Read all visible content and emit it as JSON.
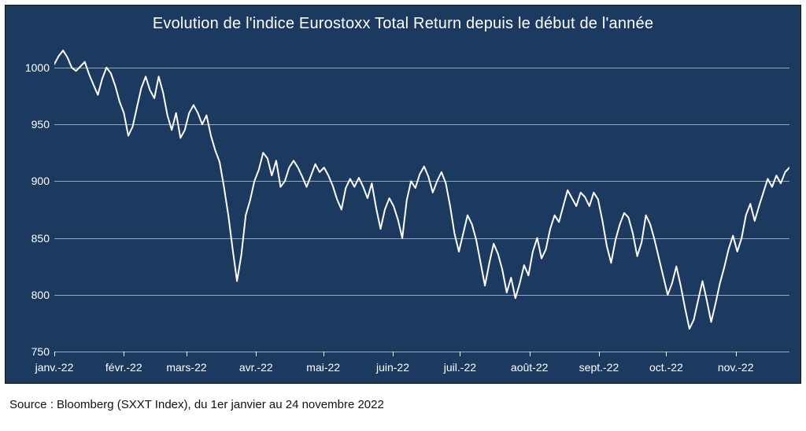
{
  "chart": {
    "type": "line",
    "title": "Evolution de l'indice Eurostoxx Total Return depuis le début de l'année",
    "title_fontsize": 20,
    "title_color": "#ffffff",
    "background_color": "#1c3a5f",
    "grid_color": "#ffffff",
    "grid_opacity": 0.55,
    "line_color": "#ffffff",
    "line_width": 2,
    "axis_label_color": "#ffffff",
    "axis_label_fontsize": 14,
    "ylim": [
      750,
      1020
    ],
    "yticks": [
      750,
      800,
      850,
      900,
      950,
      1000
    ],
    "xticks": [
      "janv.-22",
      "févr.-22",
      "mars-22",
      "avr.-22",
      "mai-22",
      "juin-22",
      "juil.-22",
      "août-22",
      "sept.-22",
      "oct.-22",
      "nov.-22"
    ],
    "x_range_days": 328,
    "values": [
      1003,
      1010,
      1015,
      1009,
      1000,
      997,
      1001,
      1005,
      994,
      985,
      976,
      990,
      1000,
      995,
      984,
      970,
      960,
      940,
      948,
      965,
      982,
      992,
      980,
      973,
      992,
      978,
      958,
      945,
      960,
      938,
      945,
      960,
      967,
      960,
      950,
      958,
      940,
      927,
      917,
      895,
      870,
      840,
      812,
      835,
      870,
      883,
      900,
      910,
      925,
      920,
      905,
      918,
      895,
      900,
      912,
      918,
      912,
      904,
      895,
      905,
      915,
      908,
      912,
      905,
      896,
      884,
      875,
      894,
      902,
      895,
      903,
      895,
      885,
      898,
      876,
      858,
      875,
      885,
      878,
      866,
      850,
      883,
      900,
      894,
      906,
      913,
      904,
      890,
      900,
      908,
      898,
      878,
      854,
      838,
      854,
      870,
      862,
      848,
      828,
      808,
      828,
      845,
      836,
      822,
      802,
      815,
      797,
      810,
      826,
      817,
      838,
      850,
      832,
      840,
      858,
      870,
      864,
      878,
      892,
      885,
      878,
      890,
      886,
      878,
      890,
      884,
      865,
      843,
      828,
      848,
      862,
      872,
      868,
      854,
      834,
      846,
      870,
      862,
      848,
      832,
      816,
      800,
      810,
      825,
      808,
      788,
      770,
      778,
      795,
      812,
      795,
      776,
      792,
      810,
      824,
      840,
      852,
      838,
      850,
      870,
      880,
      865,
      878,
      890,
      902,
      895,
      905,
      898,
      908,
      912
    ]
  },
  "caption": "Source : Bloomberg (SXXT Index), du 1er janvier au 24 novembre 2022"
}
